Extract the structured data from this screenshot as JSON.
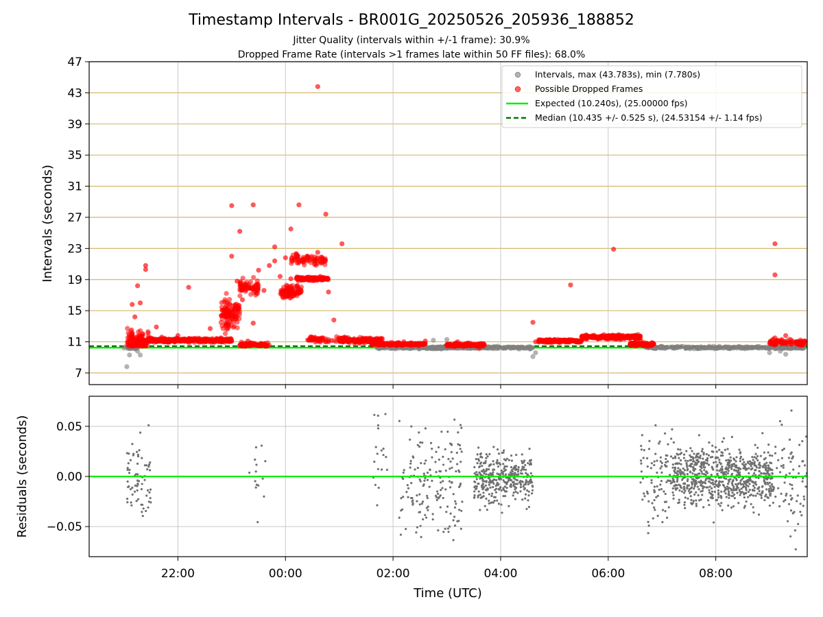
{
  "figure": {
    "title": "Timestamp Intervals - BR001G_20250526_205936_188852",
    "subtitle1": "Jitter Quality (intervals within +/-1 frame): 30.9%",
    "subtitle2": "Dropped Frame Rate (intervals >1 frames late within 50 FF files): 68.0%"
  },
  "colors": {
    "normal_points": "#808080",
    "dropped_points": "#ff0000",
    "expected_line": "#00ee00",
    "median_line": "#007700",
    "hgrid_top": "#d4b86a",
    "grid": "#c8c8c8",
    "residual_points": "#707070"
  },
  "chart_data": [
    {
      "type": "scatter",
      "panel": "intervals",
      "xlabel": "",
      "ylabel": "Intervals (seconds)",
      "x_unit": "hours UTC relative to 00:00 on start day (tick labels shown as HH:MM)",
      "xlim": [
        -3.65,
        9.7
      ],
      "ylim": [
        5.5,
        47
      ],
      "yticks": [
        7,
        11,
        15,
        19,
        23,
        27,
        31,
        35,
        39,
        43,
        47
      ],
      "ytick_labels": [
        "7",
        "11",
        "15",
        "19",
        "23",
        "27",
        "31",
        "35",
        "39",
        "43",
        "47"
      ],
      "grid": true,
      "legend_position": "top-right",
      "legend": [
        "Intervals, max (43.783s), min (7.780s)",
        "Possible Dropped Frames",
        "Expected (10.240s), (25.00000 fps)",
        "Median (10.435 +/- 0.525 s), (24.53154 +/- 1.14 fps)"
      ],
      "expected_interval": 10.24,
      "median_interval": 10.435,
      "series": [
        {
          "name": "Intervals, max (43.783s), min (7.780s)",
          "kind": "normal",
          "x": [
            -3.0,
            -2.95,
            -2.9,
            -2.8,
            -2.7,
            1.8,
            2.0,
            2.2,
            2.4,
            2.6,
            2.8,
            3.0,
            3.2,
            3.5,
            3.8,
            4.1,
            4.4,
            4.6,
            7.0,
            7.3,
            7.6,
            7.9,
            8.2,
            8.5,
            8.8,
            9.1,
            9.3,
            9.6,
            -2.85,
            -2.6,
            -2.75,
            4.65,
            2.75,
            9.0,
            9.2
          ],
          "y": [
            10.2,
            7.8,
            9.3,
            10.4,
            9.3,
            10.4,
            10.2,
            10.3,
            10.2,
            10.4,
            10.1,
            11.3,
            10.6,
            10.2,
            10.3,
            10.2,
            10.3,
            9.1,
            10.2,
            10.3,
            10.1,
            10.2,
            10.3,
            10.2,
            10.2,
            10.1,
            9.4,
            10.2,
            11.8,
            11.0,
            9.8,
            9.6,
            11.2,
            9.6,
            9.8
          ]
        },
        {
          "name": "Possible Dropped Frames",
          "kind": "dropped",
          "x": [
            -2.85,
            -2.8,
            -2.75,
            -2.7,
            -2.65,
            -2.6,
            -2.55,
            -2.5,
            -2.4,
            -2.3,
            -2.2,
            -2.0,
            -1.8,
            -1.6,
            -1.4,
            -1.2,
            -1.0,
            -0.9,
            -0.8,
            -0.7,
            -0.6,
            -0.5,
            -0.4,
            -0.3,
            -0.2,
            -0.1,
            0.0,
            0.1,
            0.2,
            0.3,
            0.4,
            0.5,
            0.6,
            0.7,
            0.8,
            0.9,
            1.0,
            1.1,
            1.2,
            1.4,
            1.6,
            1.8,
            2.0,
            2.2,
            2.4,
            2.6,
            3.0,
            3.2,
            3.4,
            3.6,
            4.65,
            4.8,
            5.0,
            5.2,
            5.4,
            5.6,
            5.8,
            6.0,
            6.1,
            6.2,
            6.4,
            6.6,
            6.8,
            9.0,
            9.1,
            9.2,
            9.3,
            9.4,
            9.5,
            9.6,
            -2.6,
            -1.8,
            -1.0,
            -0.85,
            -0.6,
            -0.2,
            0.1,
            0.25,
            0.6,
            0.75,
            1.05,
            4.6,
            5.3,
            6.1,
            9.1,
            9.1
          ],
          "y": [
            15.8,
            14.2,
            18.2,
            16.0,
            11.3,
            20.3,
            11.1,
            11.5,
            12.9,
            11.6,
            11.2,
            11.8,
            11.4,
            11.3,
            12.7,
            11.5,
            22.0,
            18.8,
            16.4,
            11.1,
            13.4,
            20.2,
            17.6,
            20.8,
            23.2,
            19.4,
            21.8,
            19.1,
            22.3,
            19.0,
            22.0,
            19.2,
            22.5,
            19.0,
            17.4,
            13.8,
            11.5,
            11.6,
            11.2,
            11.0,
            10.8,
            11.4,
            10.8,
            11.0,
            10.7,
            11.1,
            10.6,
            11.0,
            10.8,
            10.2,
            11.0,
            11.1,
            11.3,
            11.2,
            11.0,
            11.4,
            11.6,
            11.8,
            11.4,
            11.9,
            11.6,
            11.2,
            10.5,
            10.8,
            11.5,
            11.0,
            11.8,
            10.7,
            11.0,
            10.6,
            20.8,
            18.0,
            28.5,
            25.2,
            28.6,
            21.4,
            25.5,
            28.6,
            43.8,
            27.4,
            23.6,
            13.5,
            18.3,
            22.9,
            23.6,
            19.6
          ]
        }
      ]
    },
    {
      "type": "scatter",
      "panel": "residuals",
      "xlabel": "Time (UTC)",
      "ylabel": "Residuals (seconds)",
      "xlim": [
        -3.65,
        9.7
      ],
      "ylim": [
        -0.08,
        0.08
      ],
      "yticks": [
        0.05,
        0.0,
        -0.05
      ],
      "ytick_labels": [
        "0.05",
        "0.00",
        "−0.05"
      ],
      "xticks": [
        -2,
        0,
        2,
        4,
        6,
        8
      ],
      "xtick_labels": [
        "22:00",
        "00:00",
        "02:00",
        "04:00",
        "06:00",
        "08:00"
      ],
      "grid": true,
      "zero_line": 0.0,
      "clusters": [
        {
          "x_from": -2.95,
          "x_to": -2.5,
          "count": 70,
          "center": 0.0,
          "spread": 0.07
        },
        {
          "x_from": -0.75,
          "x_to": -0.3,
          "count": 14,
          "center": 0.0,
          "spread": 0.09
        },
        {
          "x_from": 1.6,
          "x_to": 1.9,
          "count": 20,
          "center": 0.03,
          "spread": 0.1
        },
        {
          "x_from": 2.1,
          "x_to": 3.3,
          "count": 170,
          "center": -0.005,
          "spread": 0.1
        },
        {
          "x_from": 3.5,
          "x_to": 4.6,
          "count": 360,
          "center": 0.0,
          "spread": 0.045
        },
        {
          "x_from": 6.6,
          "x_to": 7.2,
          "count": 90,
          "center": 0.0,
          "spread": 0.09
        },
        {
          "x_from": 7.2,
          "x_to": 9.05,
          "count": 720,
          "center": 0.0,
          "spread": 0.05
        },
        {
          "x_from": 9.05,
          "x_to": 9.7,
          "count": 80,
          "center": 0.0,
          "spread": 0.09
        }
      ]
    }
  ]
}
